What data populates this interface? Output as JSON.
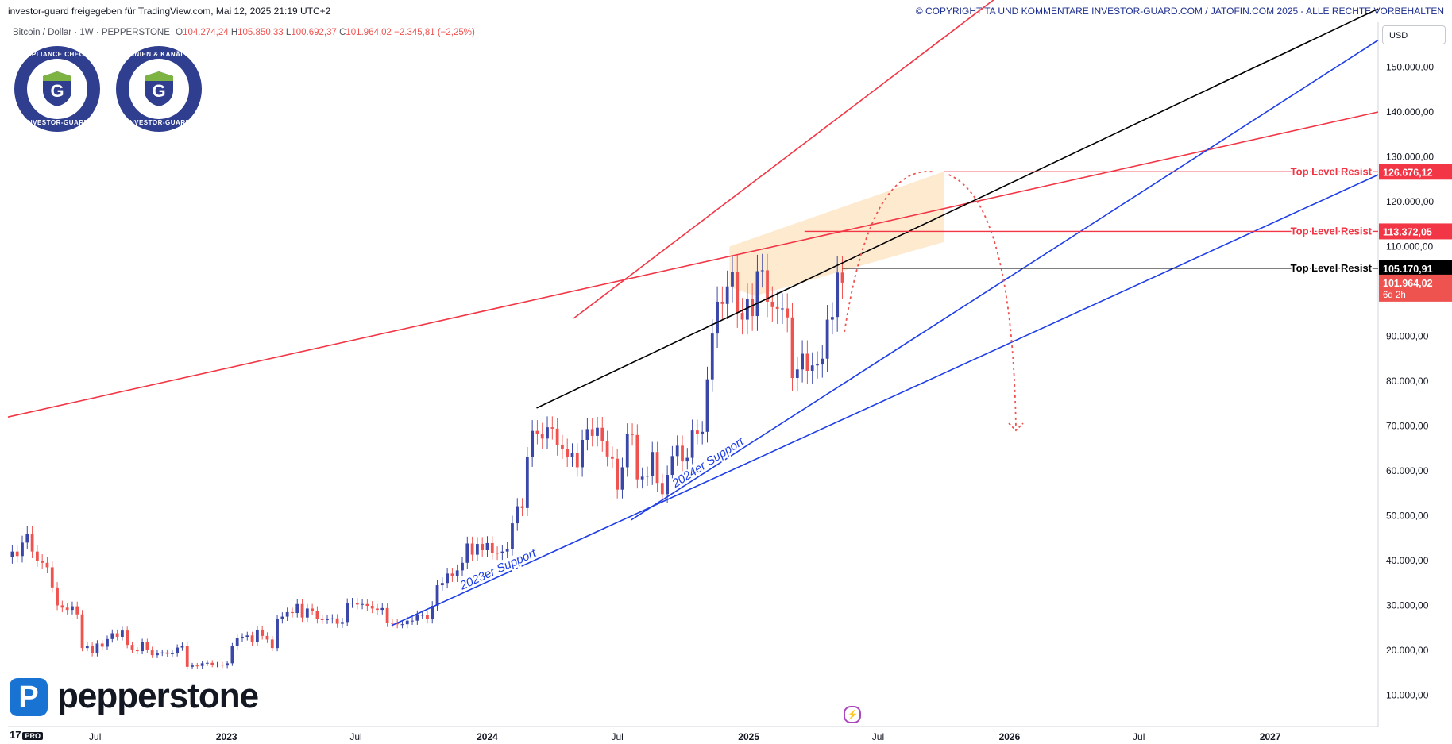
{
  "header": {
    "published": "investor-guard freigegeben für TradingView.com, Mai 12, 2025 21:19 UTC+2",
    "copyright": "© COPYRIGHT TA UND KOMMENTARE INVESTOR-GUARD.COM / JATOFIN.COM 2025 - ALLE RECHTE VORBEHALTEN"
  },
  "legend": {
    "symbol": "Bitcoin / Dollar · 1W · PEPPERSTONE",
    "open_label": "O",
    "open": "104.274,24",
    "high_label": "H",
    "high": "105.850,33",
    "low_label": "L",
    "low": "100.692,37",
    "close_label": "C",
    "close": "101.964,02",
    "change": "−2.345,81 (−2,25%)"
  },
  "currency": "USD",
  "badges": [
    {
      "top": "COMPLIANCE CHECKED",
      "bottom": "INVESTOR-GUARD",
      "letter": "G"
    },
    {
      "top": "LINIEN & KANÄLE",
      "bottom": "INVESTOR-GUARD",
      "letter": "G"
    }
  ],
  "brand": {
    "logo_letter": "P",
    "name": "pepperstone"
  },
  "tv_logo": {
    "text": "17",
    "badge": "PRO"
  },
  "colors": {
    "up": "#3b47a8",
    "down": "#ef5350",
    "resistance": "#f23645",
    "support": "#1e3ee6",
    "trend": "#000000",
    "zone": "#fde6c7"
  },
  "chart_data": {
    "type": "candlestick",
    "title": "Bitcoin / Dollar · 1W · PEPPERSTONE",
    "x_ticks": [
      "Jul",
      "2023",
      "Jul",
      "2024",
      "Jul",
      "2025",
      "Jul",
      "2026",
      "Jul",
      "2027"
    ],
    "y_ticks": [
      "10.000,00",
      "20.000,00",
      "30.000,00",
      "40.000,00",
      "50.000,00",
      "60.000,00",
      "70.000,00",
      "80.000,00",
      "90.000,00",
      "100.000,00",
      "110.000,00",
      "120.000,00",
      "130.000,00",
      "140.000,00",
      "150.000,00"
    ],
    "y_tick_values": [
      10000,
      20000,
      30000,
      40000,
      50000,
      60000,
      70000,
      80000,
      90000,
      100000,
      110000,
      120000,
      130000,
      140000,
      150000
    ],
    "ylim": [
      3000,
      160000
    ],
    "xlim": [
      "2022-03-01",
      "2027-06-01"
    ],
    "tick_dates": [
      "2022-07-01",
      "2023-01-01",
      "2023-07-01",
      "2024-01-01",
      "2024-07-01",
      "2025-01-01",
      "2025-07-01",
      "2026-01-01",
      "2026-07-01",
      "2027-01-01"
    ],
    "series_weekly_close": [
      [
        "2022-03-07",
        42000
      ],
      [
        "2022-03-14",
        41000
      ],
      [
        "2022-03-21",
        44000
      ],
      [
        "2022-03-28",
        46000
      ],
      [
        "2022-04-04",
        42000
      ],
      [
        "2022-04-11",
        40000
      ],
      [
        "2022-04-18",
        39500
      ],
      [
        "2022-04-25",
        38500
      ],
      [
        "2022-05-02",
        34000
      ],
      [
        "2022-05-09",
        30000
      ],
      [
        "2022-05-16",
        29500
      ],
      [
        "2022-05-23",
        29000
      ],
      [
        "2022-05-30",
        29800
      ],
      [
        "2022-06-06",
        28000
      ],
      [
        "2022-06-13",
        20500
      ],
      [
        "2022-06-20",
        21000
      ],
      [
        "2022-06-27",
        19300
      ],
      [
        "2022-07-04",
        21500
      ],
      [
        "2022-07-11",
        20800
      ],
      [
        "2022-07-18",
        22500
      ],
      [
        "2022-07-25",
        23800
      ],
      [
        "2022-08-01",
        23000
      ],
      [
        "2022-08-08",
        24400
      ],
      [
        "2022-08-15",
        21200
      ],
      [
        "2022-08-22",
        20000
      ],
      [
        "2022-08-29",
        19800
      ],
      [
        "2022-09-05",
        21800
      ],
      [
        "2022-09-12",
        20100
      ],
      [
        "2022-09-19",
        18900
      ],
      [
        "2022-09-26",
        19400
      ],
      [
        "2022-10-03",
        19500
      ],
      [
        "2022-10-10",
        19200
      ],
      [
        "2022-10-17",
        19300
      ],
      [
        "2022-10-24",
        20600
      ],
      [
        "2022-10-31",
        21000
      ],
      [
        "2022-11-07",
        16300
      ],
      [
        "2022-11-14",
        16600
      ],
      [
        "2022-11-21",
        16500
      ],
      [
        "2022-11-28",
        17100
      ],
      [
        "2022-12-05",
        17200
      ],
      [
        "2022-12-12",
        16800
      ],
      [
        "2022-12-19",
        16800
      ],
      [
        "2022-12-26",
        16600
      ],
      [
        "2023-01-02",
        17100
      ],
      [
        "2023-01-09",
        20900
      ],
      [
        "2023-01-16",
        22700
      ],
      [
        "2023-01-23",
        23000
      ],
      [
        "2023-01-30",
        23300
      ],
      [
        "2023-02-06",
        21800
      ],
      [
        "2023-02-13",
        24600
      ],
      [
        "2023-02-20",
        23200
      ],
      [
        "2023-02-27",
        22400
      ],
      [
        "2023-03-06",
        20500
      ],
      [
        "2023-03-13",
        26900
      ],
      [
        "2023-03-20",
        27500
      ],
      [
        "2023-03-27",
        28500
      ],
      [
        "2023-04-03",
        28300
      ],
      [
        "2023-04-10",
        30300
      ],
      [
        "2023-04-17",
        27300
      ],
      [
        "2023-04-24",
        29300
      ],
      [
        "2023-05-01",
        28800
      ],
      [
        "2023-05-08",
        26900
      ],
      [
        "2023-05-15",
        26800
      ],
      [
        "2023-05-22",
        26900
      ],
      [
        "2023-05-29",
        27100
      ],
      [
        "2023-06-05",
        25900
      ],
      [
        "2023-06-12",
        26300
      ],
      [
        "2023-06-19",
        30500
      ],
      [
        "2023-06-26",
        30600
      ],
      [
        "2023-07-03",
        30200
      ],
      [
        "2023-07-10",
        30300
      ],
      [
        "2023-07-17",
        29900
      ],
      [
        "2023-07-24",
        29300
      ],
      [
        "2023-07-31",
        29000
      ],
      [
        "2023-08-07",
        29400
      ],
      [
        "2023-08-14",
        26100
      ],
      [
        "2023-08-21",
        26000
      ],
      [
        "2023-08-28",
        25800
      ],
      [
        "2023-09-04",
        25800
      ],
      [
        "2023-09-11",
        26600
      ],
      [
        "2023-09-18",
        26600
      ],
      [
        "2023-09-25",
        27900
      ],
      [
        "2023-10-02",
        27900
      ],
      [
        "2023-10-09",
        26900
      ],
      [
        "2023-10-16",
        29900
      ],
      [
        "2023-10-23",
        34500
      ],
      [
        "2023-10-30",
        35000
      ],
      [
        "2023-11-06",
        37100
      ],
      [
        "2023-11-13",
        36500
      ],
      [
        "2023-11-20",
        37800
      ],
      [
        "2023-11-27",
        39500
      ],
      [
        "2023-12-04",
        43800
      ],
      [
        "2023-12-11",
        41300
      ],
      [
        "2023-12-18",
        43700
      ],
      [
        "2023-12-25",
        42300
      ],
      [
        "2024-01-01",
        43900
      ],
      [
        "2024-01-08",
        41700
      ],
      [
        "2024-01-15",
        41600
      ],
      [
        "2024-01-22",
        42000
      ],
      [
        "2024-01-29",
        42600
      ],
      [
        "2024-02-05",
        48300
      ],
      [
        "2024-02-12",
        52100
      ],
      [
        "2024-02-19",
        51700
      ],
      [
        "2024-02-26",
        63100
      ],
      [
        "2024-03-04",
        68900
      ],
      [
        "2024-03-11",
        68300
      ],
      [
        "2024-03-18",
        67200
      ],
      [
        "2024-03-25",
        69700
      ],
      [
        "2024-04-01",
        69400
      ],
      [
        "2024-04-08",
        65700
      ],
      [
        "2024-04-15",
        64900
      ],
      [
        "2024-04-22",
        63100
      ],
      [
        "2024-04-29",
        63900
      ],
      [
        "2024-05-06",
        60800
      ],
      [
        "2024-05-13",
        66900
      ],
      [
        "2024-05-20",
        69300
      ],
      [
        "2024-05-27",
        67800
      ],
      [
        "2024-06-03",
        69600
      ],
      [
        "2024-06-10",
        66600
      ],
      [
        "2024-06-17",
        63200
      ],
      [
        "2024-06-24",
        62700
      ],
      [
        "2024-07-01",
        55800
      ],
      [
        "2024-07-08",
        60800
      ],
      [
        "2024-07-15",
        68200
      ],
      [
        "2024-07-22",
        68000
      ],
      [
        "2024-07-29",
        58100
      ],
      [
        "2024-08-05",
        58700
      ],
      [
        "2024-08-12",
        58900
      ],
      [
        "2024-08-19",
        64200
      ],
      [
        "2024-08-26",
        57300
      ],
      [
        "2024-09-02",
        54800
      ],
      [
        "2024-09-09",
        59100
      ],
      [
        "2024-09-16",
        63300
      ],
      [
        "2024-09-23",
        65600
      ],
      [
        "2024-09-30",
        62100
      ],
      [
        "2024-10-07",
        62900
      ],
      [
        "2024-10-14",
        69000
      ],
      [
        "2024-10-21",
        68300
      ],
      [
        "2024-10-28",
        68700
      ],
      [
        "2024-11-04",
        80400
      ],
      [
        "2024-11-11",
        90600
      ],
      [
        "2024-11-18",
        97700
      ],
      [
        "2024-11-25",
        97200
      ],
      [
        "2024-12-02",
        101100
      ],
      [
        "2024-12-09",
        104400
      ],
      [
        "2024-12-16",
        95200
      ],
      [
        "2024-12-23",
        93700
      ],
      [
        "2024-12-30",
        98300
      ],
      [
        "2025-01-06",
        94500
      ],
      [
        "2025-01-13",
        104500
      ],
      [
        "2025-01-20",
        104700
      ],
      [
        "2025-01-27",
        97700
      ],
      [
        "2025-02-03",
        96500
      ],
      [
        "2025-02-10",
        96100
      ],
      [
        "2025-02-17",
        96200
      ],
      [
        "2025-02-24",
        94200
      ],
      [
        "2025-03-03",
        80700
      ],
      [
        "2025-03-10",
        82600
      ],
      [
        "2025-03-17",
        86100
      ],
      [
        "2025-03-24",
        82300
      ],
      [
        "2025-03-31",
        83500
      ],
      [
        "2025-04-07",
        83700
      ],
      [
        "2025-04-14",
        85000
      ],
      [
        "2025-04-21",
        93700
      ],
      [
        "2025-04-28",
        94300
      ],
      [
        "2025-05-05",
        104200
      ],
      [
        "2025-05-12",
        101964
      ]
    ],
    "last": {
      "date": "2025-05-12",
      "open": 104274.24,
      "high": 105850.33,
      "low": 100692.37,
      "close": 101964.02
    },
    "price_labels": [
      {
        "text": "126.676,12",
        "value": 126676.12,
        "color": "#f23645"
      },
      {
        "text": "113.372,05",
        "value": 113372.05,
        "color": "#f23645"
      },
      {
        "text": "105.170,91",
        "value": 105170.91,
        "color": "#000000"
      },
      {
        "text": "101.964,02",
        "value": 101964.02,
        "color": "#ef5350",
        "sub": "6d 2h"
      }
    ],
    "levels": [
      {
        "label": "Top Level Resist",
        "value": 126676.12,
        "from": "2025-10-01",
        "color": "#f23645"
      },
      {
        "label": "Top Level Resist",
        "value": 113372.05,
        "from": "2025-03-20",
        "color": "#f23645"
      },
      {
        "label": "Top Level Resist",
        "value": 105170.91,
        "from": "2025-05-12",
        "color": "#000000"
      }
    ],
    "trendlines": [
      {
        "name": "long-resistance",
        "color": "#f23645",
        "from": [
          "2022-03-01",
          72000
        ],
        "to": [
          "2027-06-01",
          140000
        ]
      },
      {
        "name": "channel-resistance-upper",
        "color": "#f23645",
        "from": [
          "2024-05-01",
          94000
        ],
        "to": [
          "2027-06-01",
          230000
        ]
      },
      {
        "name": "black-trendline",
        "color": "#000000",
        "from": [
          "2024-03-10",
          74000
        ],
        "to": [
          "2027-06-01",
          163000
        ]
      },
      {
        "name": "support-2023",
        "color": "#1e3ee6",
        "label": "2023er Support",
        "from": [
          "2023-08-20",
          25500
        ],
        "to": [
          "2027-06-01",
          126000
        ]
      },
      {
        "name": "support-2024",
        "color": "#1e3ee6",
        "label": "2024er Support",
        "from": [
          "2024-07-20",
          49000
        ],
        "to": [
          "2027-06-01",
          156000
        ]
      }
    ]
  }
}
